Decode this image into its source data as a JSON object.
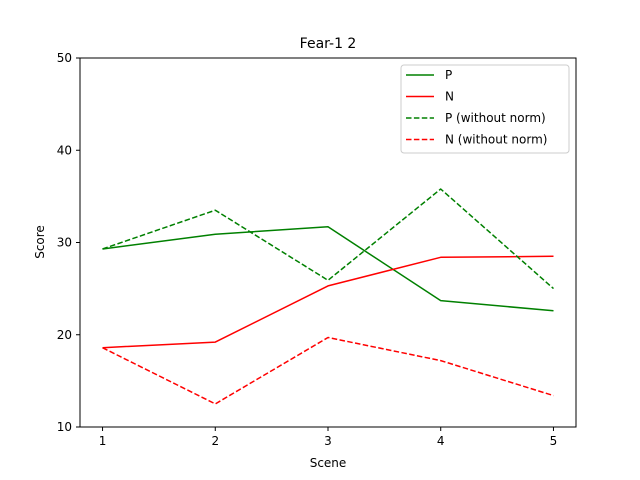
{
  "chart_data": {
    "type": "line",
    "title": "Fear-1 2",
    "xlabel": "Scene",
    "ylabel": "Score",
    "x": [
      1,
      2,
      3,
      4,
      5
    ],
    "x_ticks": [
      "1",
      "2",
      "3",
      "4",
      "5"
    ],
    "y_ticks": [
      "10",
      "20",
      "30",
      "40",
      "50"
    ],
    "xlim": [
      0.8,
      5.2
    ],
    "ylim": [
      10,
      50
    ],
    "grid": false,
    "legend_position": "top-right",
    "series": [
      {
        "name": "P",
        "values": [
          29.3,
          30.9,
          31.7,
          23.7,
          22.6
        ],
        "color": "#008000",
        "dash": "solid"
      },
      {
        "name": "N",
        "values": [
          18.6,
          19.2,
          25.3,
          28.4,
          28.5
        ],
        "color": "#ff0000",
        "dash": "solid"
      },
      {
        "name": "P (without norm)",
        "values": [
          29.3,
          33.5,
          25.9,
          35.8,
          25.0
        ],
        "color": "#008000",
        "dash": "dashed"
      },
      {
        "name": "N (without norm)",
        "values": [
          18.6,
          12.5,
          19.7,
          17.2,
          13.4
        ],
        "color": "#ff0000",
        "dash": "dashed"
      }
    ]
  }
}
